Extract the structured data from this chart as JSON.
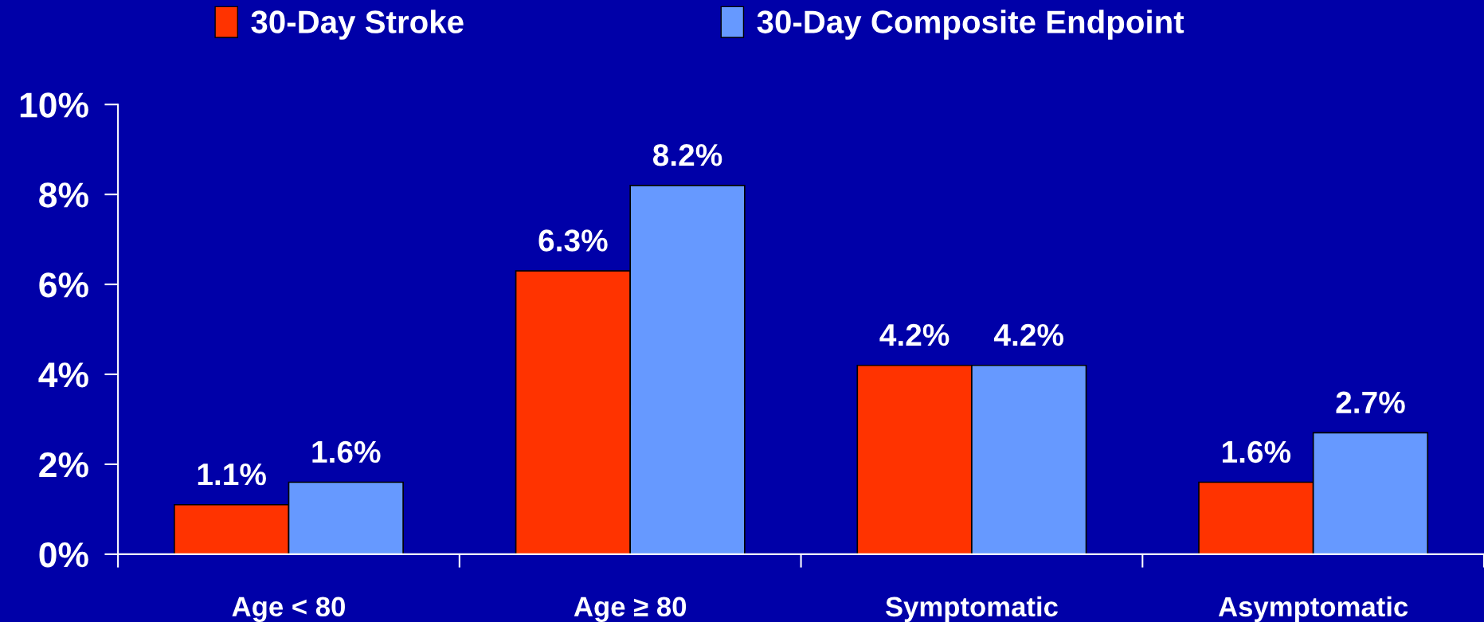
{
  "chart_data": {
    "type": "bar",
    "categories": [
      "Age < 80",
      "Age ≥ 80",
      "Symptomatic",
      "Asymptomatic"
    ],
    "series": [
      {
        "name": "30-Day Stroke",
        "color": "#ff3300",
        "values": [
          1.1,
          6.3,
          4.2,
          1.6
        ]
      },
      {
        "name": "30-Day Composite Endpoint",
        "color": "#6699ff",
        "values": [
          1.6,
          8.2,
          4.2,
          2.7
        ]
      }
    ],
    "ylim": [
      0,
      10
    ],
    "yticks": [
      {
        "value": 0,
        "label": "0%"
      },
      {
        "value": 2,
        "label": "2%"
      },
      {
        "value": 4,
        "label": "4%"
      },
      {
        "value": 6,
        "label": "6%"
      },
      {
        "value": 8,
        "label": "8%"
      },
      {
        "value": 10,
        "label": "10%"
      }
    ],
    "value_labels": [
      [
        "1.1%",
        "6.3%",
        "4.2%",
        "1.6%"
      ],
      [
        "1.6%",
        "8.2%",
        "4.2%",
        "2.7%"
      ]
    ],
    "grid": false,
    "legend": "top"
  }
}
